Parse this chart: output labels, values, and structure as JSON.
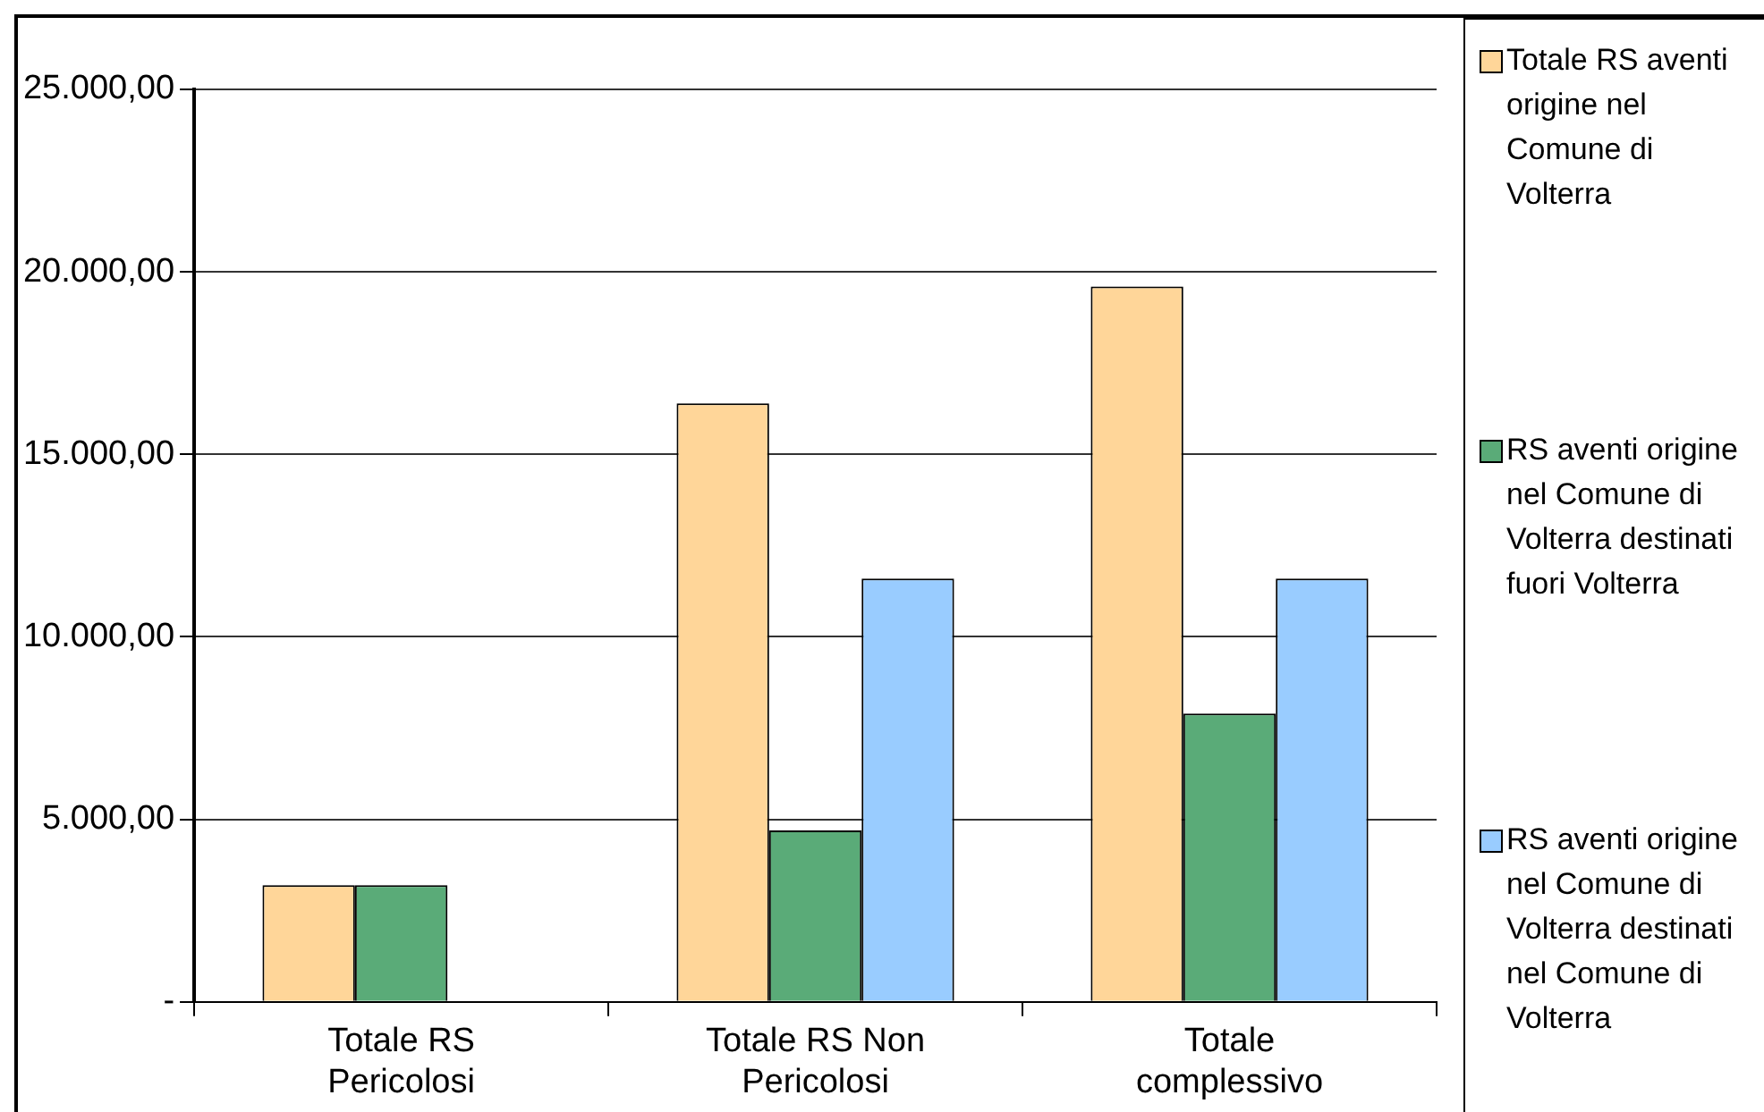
{
  "chart_data": {
    "type": "bar",
    "categories": [
      "Totale RS Pericolosi",
      "Totale RS Non Pericolosi",
      "Totale complessivo"
    ],
    "series": [
      {
        "name": "Totale RS aventi origine nel Comune di Volterra",
        "color": "#ffd699",
        "values": [
          3200,
          16400,
          19600
        ]
      },
      {
        "name": "RS aventi origine nel Comune di Volterra destinati fuori Volterra",
        "color": "#5aab78",
        "values": [
          3200,
          4700,
          7900
        ]
      },
      {
        "name": "RS aventi origine nel Comune di Volterra destinati nel Comune di Volterra",
        "color": "#99ccff",
        "values": [
          null,
          11600,
          11600
        ]
      }
    ],
    "ylim": [
      0,
      25000
    ],
    "yticks": [
      {
        "value": 0,
        "label": "-"
      },
      {
        "value": 5000,
        "label": "5.000,00"
      },
      {
        "value": 10000,
        "label": "10.000,00"
      },
      {
        "value": 15000,
        "label": "15.000,00"
      },
      {
        "value": 20000,
        "label": "20.000,00"
      },
      {
        "value": 25000,
        "label": "25.000,00"
      }
    ],
    "grid": "y",
    "legend": "right"
  }
}
